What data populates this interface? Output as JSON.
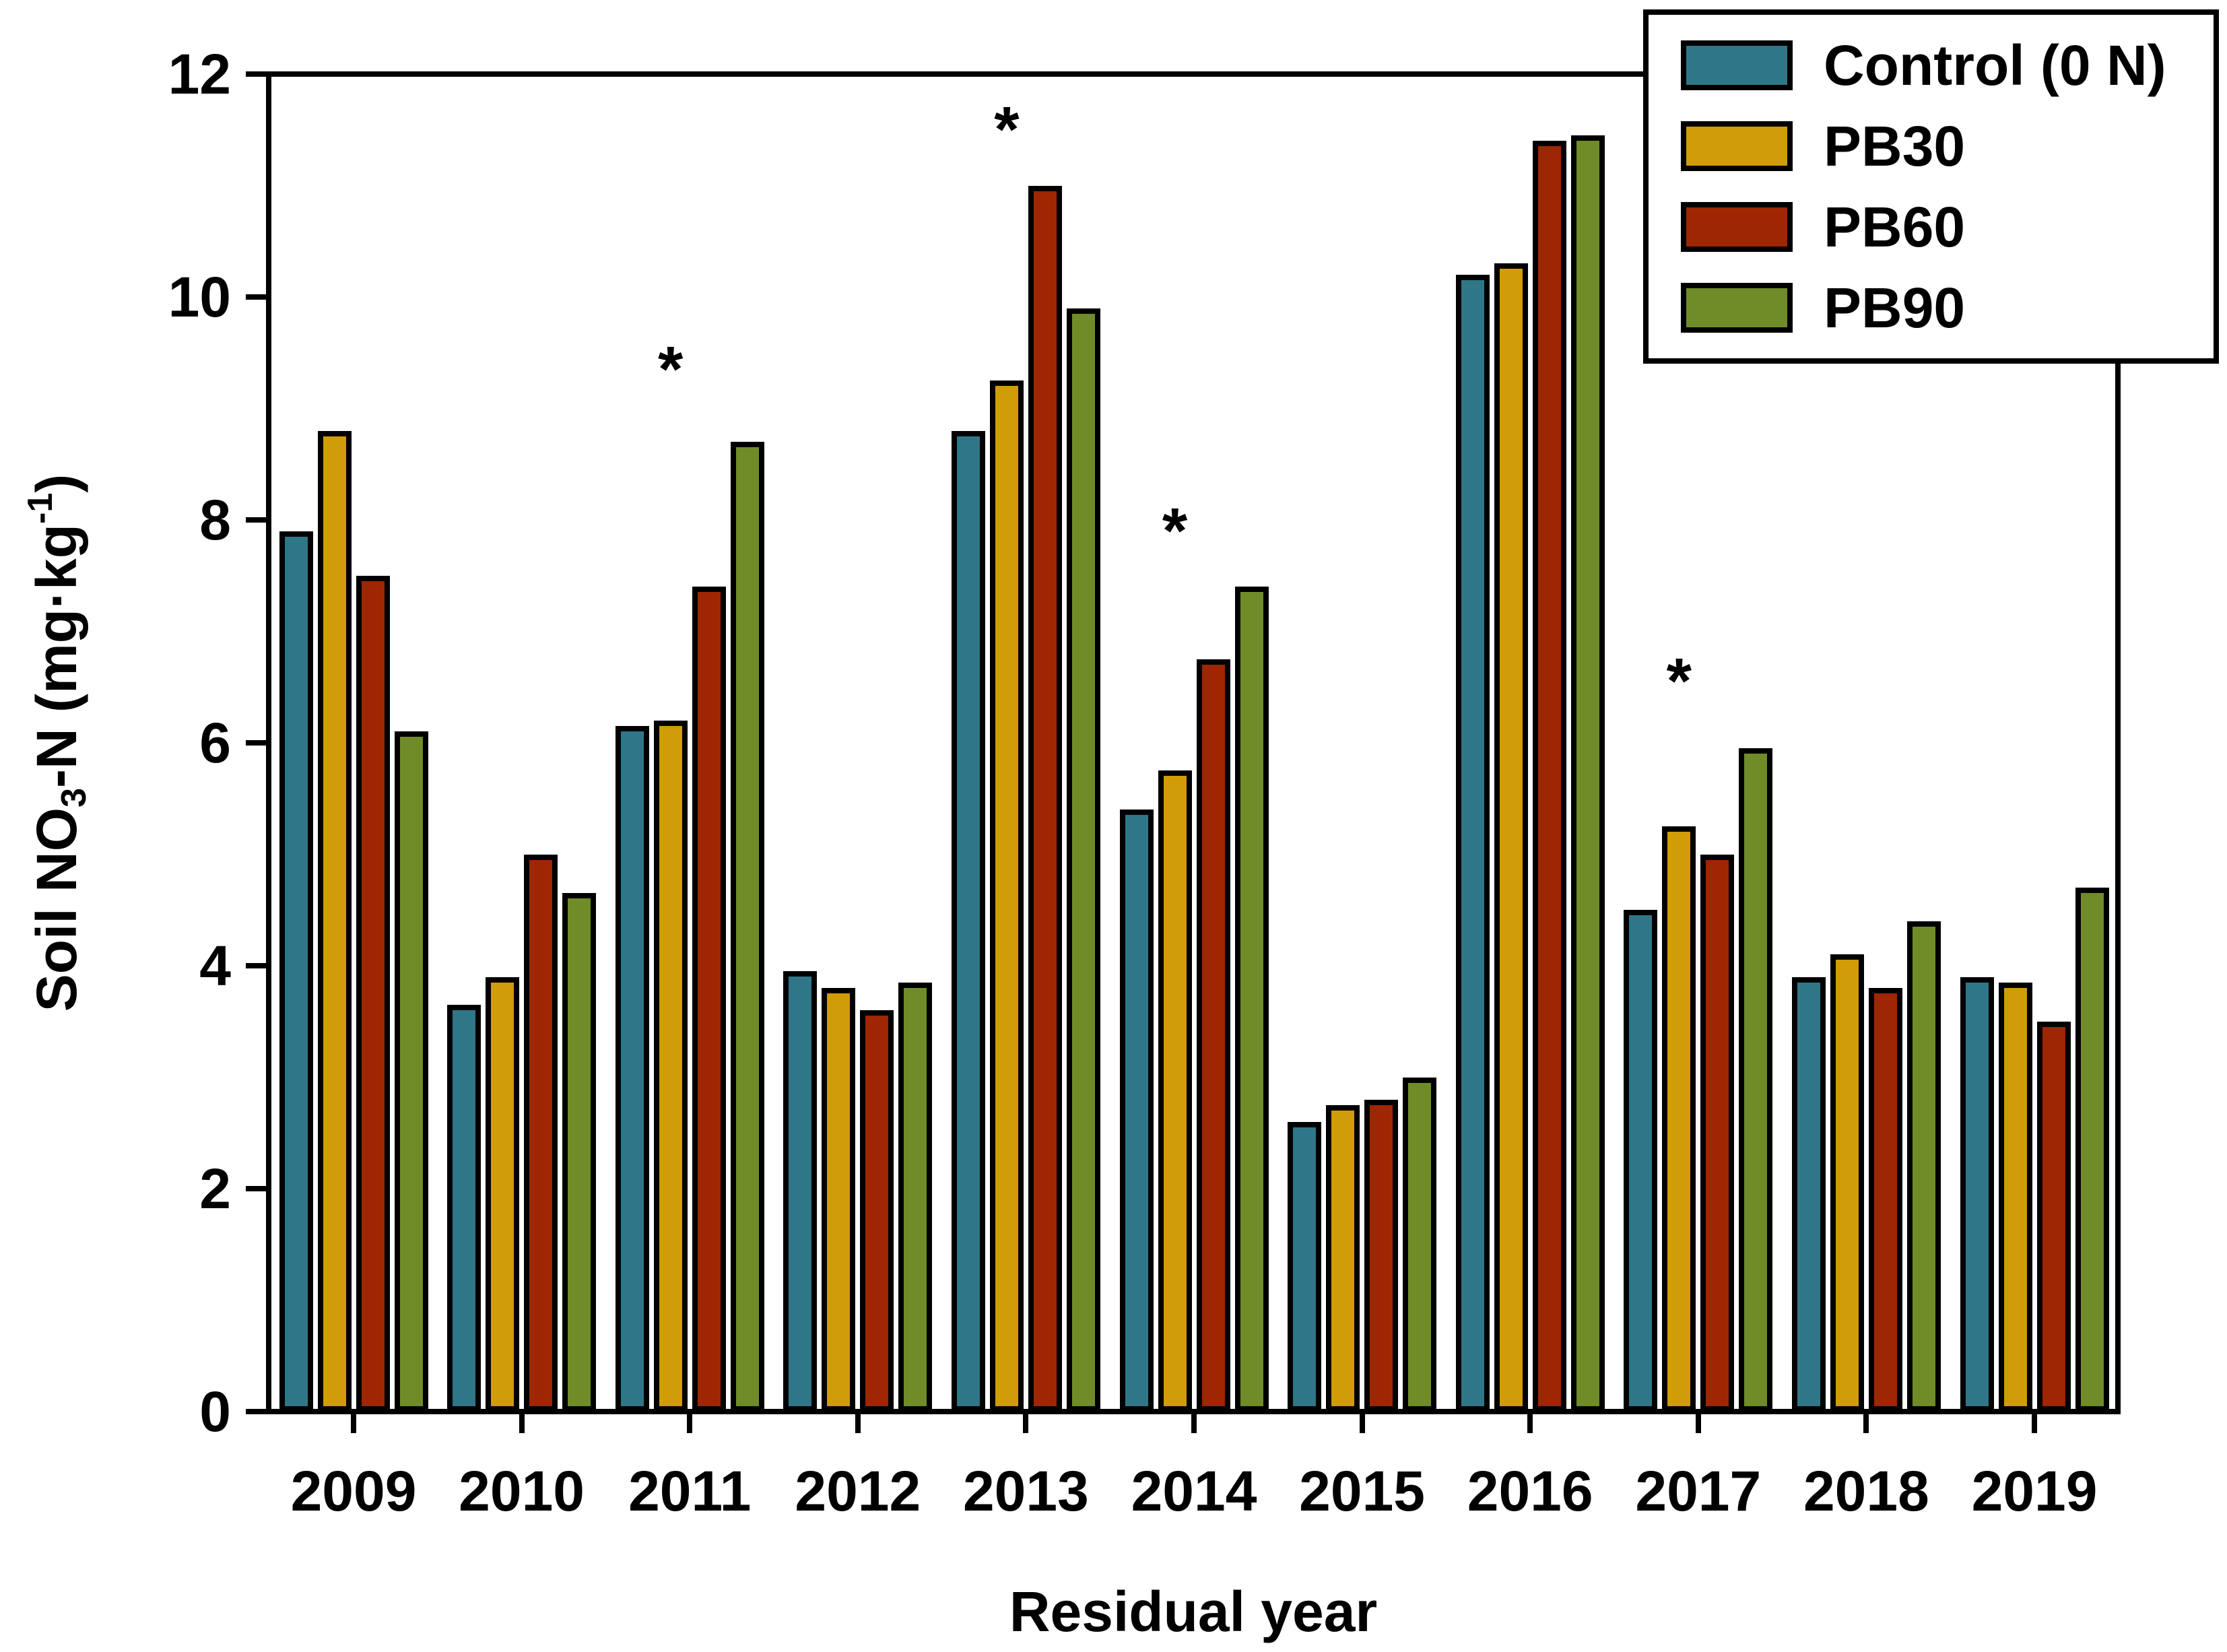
{
  "chart_data": {
    "type": "bar",
    "title": "",
    "xlabel": "Residual year",
    "ylabel": "Soil NO3-N (mg·kg-1)",
    "ylabel_rich": [
      {
        "text": "Soil NO"
      },
      {
        "text": "3",
        "style": "sub"
      },
      {
        "text": "-N (mg·kg"
      },
      {
        "text": "-1",
        "style": "sup"
      },
      {
        "text": ")"
      }
    ],
    "categories": [
      "2009",
      "2010",
      "2011",
      "2012",
      "2013",
      "2014",
      "2015",
      "2016",
      "2017",
      "2018",
      "2019"
    ],
    "series": [
      {
        "name": "Control (0 N)",
        "color": "#2F7788",
        "values": [
          7.9,
          3.65,
          6.15,
          3.95,
          8.8,
          5.4,
          2.6,
          10.2,
          4.5,
          3.9,
          3.9
        ]
      },
      {
        "name": "PB30",
        "color": "#D09C07",
        "values": [
          8.8,
          3.9,
          6.2,
          3.8,
          9.25,
          5.75,
          2.75,
          10.3,
          5.25,
          4.1,
          3.85
        ]
      },
      {
        "name": "PB60",
        "color": "#9E2602",
        "values": [
          7.5,
          5.0,
          7.4,
          3.6,
          11.0,
          6.75,
          2.8,
          11.4,
          5.0,
          3.8,
          3.5
        ]
      },
      {
        "name": "PB90",
        "color": "#708C29",
        "values": [
          6.1,
          4.65,
          8.7,
          3.85,
          9.9,
          7.4,
          3.0,
          11.45,
          5.95,
          4.4,
          4.7
        ]
      }
    ],
    "annotations": [
      {
        "category": "2011",
        "label": "*",
        "y": 9.35
      },
      {
        "category": "2013",
        "label": "*",
        "y": 11.5
      },
      {
        "category": "2014",
        "label": "*",
        "y": 7.9
      },
      {
        "category": "2017",
        "label": "*",
        "y": 6.55
      }
    ],
    "ylim": [
      0,
      12
    ],
    "yticks": [
      0,
      2,
      4,
      6,
      8,
      10,
      12
    ],
    "grid": false,
    "legend_position": "top-right",
    "frame_color": "#000000",
    "background_color": "#FFFFFF"
  }
}
